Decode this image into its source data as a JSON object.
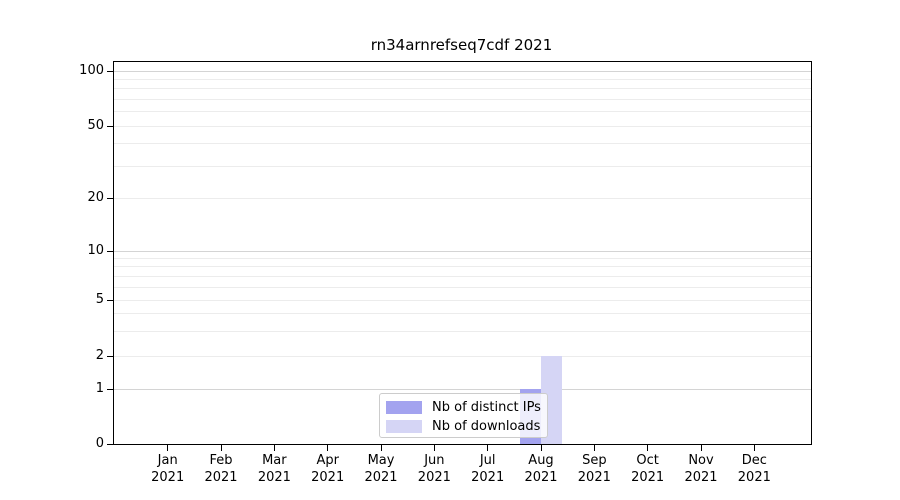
{
  "chart_data": {
    "type": "bar",
    "title": "rn34arnrefseq7cdf 2021",
    "categories": [
      "Jan 2021",
      "Feb 2021",
      "Mar 2021",
      "Apr 2021",
      "May 2021",
      "Jun 2021",
      "Jul 2021",
      "Aug 2021",
      "Sep 2021",
      "Oct 2021",
      "Nov 2021",
      "Dec 2021"
    ],
    "x_tick_months": [
      "Jan",
      "Feb",
      "Mar",
      "Apr",
      "May",
      "Jun",
      "Jul",
      "Aug",
      "Sep",
      "Oct",
      "Nov",
      "Dec"
    ],
    "x_tick_year": "2021",
    "series": [
      {
        "name": "Nb of distinct IPs",
        "color": "#a3a3ef",
        "values": [
          0,
          0,
          0,
          0,
          0,
          0,
          0,
          1,
          0,
          0,
          0,
          0
        ]
      },
      {
        "name": "Nb of downloads",
        "color": "#d5d5f5",
        "values": [
          0,
          0,
          0,
          0,
          0,
          0,
          0,
          2,
          0,
          0,
          0,
          0
        ]
      }
    ],
    "y_axis": {
      "scale": "symlog",
      "tick_values": [
        0,
        1,
        2,
        5,
        10,
        20,
        50,
        100
      ],
      "tick_labels": [
        "0",
        "1",
        "2",
        "5",
        "10",
        "20",
        "50",
        "100"
      ],
      "major_gridline_values": [
        1,
        10,
        100
      ],
      "minor_gridline_values": [
        3,
        4,
        6,
        7,
        8,
        9,
        30,
        40,
        60,
        70,
        80,
        90
      ],
      "ylim_bottom": 0
    },
    "legend": {
      "entries": [
        "Nb of distinct IPs",
        "Nb of downloads"
      ],
      "location": "lower center"
    },
    "grid": true
  },
  "colors": {
    "distinct_ips_bar": "#a3a3ef",
    "downloads_bar": "#d5d5f5",
    "grid_minor": "#ececec",
    "grid_major": "#d4d4d4",
    "spine": "#000000",
    "legend_border": "#cccccc"
  }
}
